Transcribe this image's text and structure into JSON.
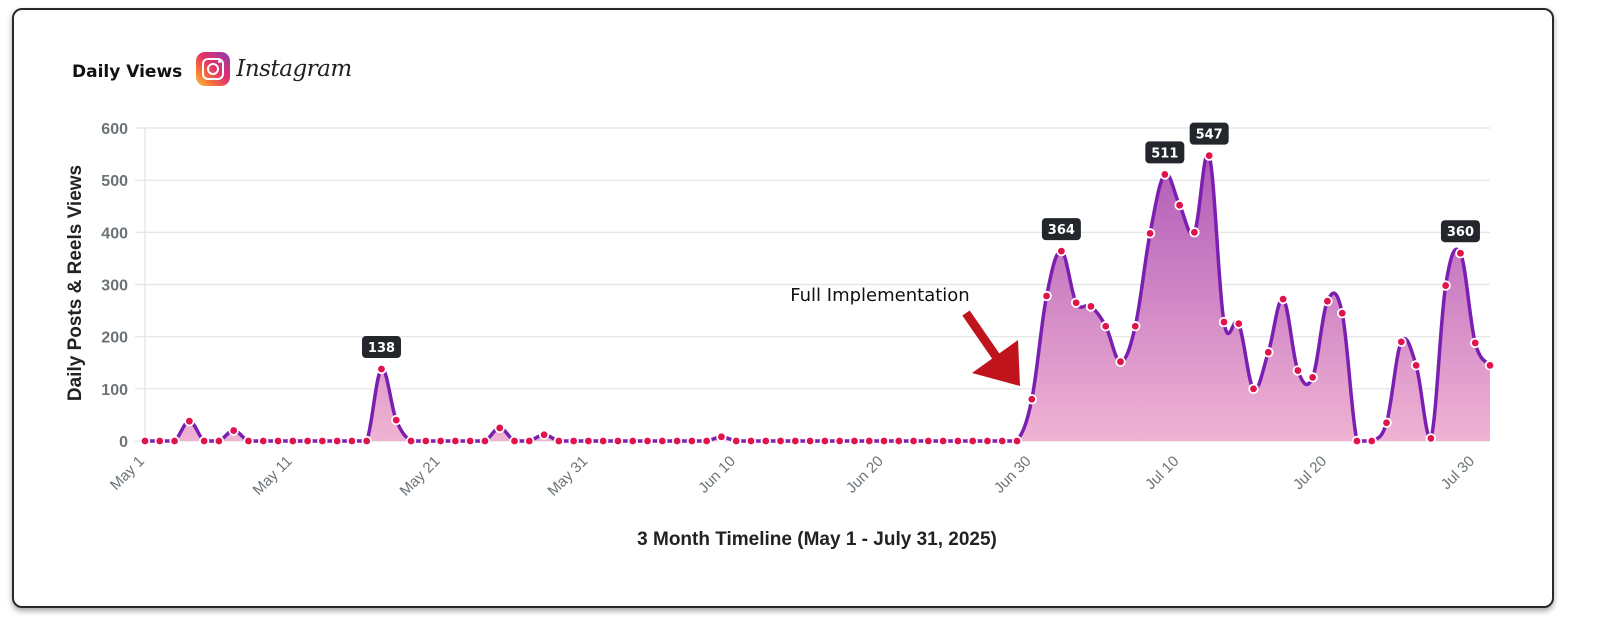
{
  "header": {
    "title": "Daily Views",
    "platform": "Instagram",
    "platform_icon": "instagram-icon"
  },
  "colors": {
    "line": "#7b1fb3",
    "fill_top": "#b05ab8",
    "fill_bottom": "#f0b3d3",
    "marker": "#e0144c",
    "grid": "#e3e3e3",
    "arrow": "#c0141c",
    "label_bg": "#23272b"
  },
  "annotation": {
    "text": "Full Implementation",
    "arrow_icon": "arrow-down-right-icon",
    "target_date": "Jun 29"
  },
  "chart_data": {
    "type": "area",
    "title": "Daily Views",
    "xlabel": "3 Month Timeline (May 1 - July 31, 2025)",
    "ylabel": "Daily Posts & Reels Views",
    "ylim": [
      0,
      600
    ],
    "yticks": [
      0,
      100,
      200,
      300,
      400,
      500,
      600
    ],
    "xtick_labels": [
      "May 1",
      "May 11",
      "May 21",
      "May 31",
      "Jun 10",
      "Jun 20",
      "Jun 30",
      "Jul 10",
      "Jul 20",
      "Jul 30"
    ],
    "xtick_indices": [
      0,
      10,
      20,
      30,
      40,
      50,
      60,
      70,
      80,
      90
    ],
    "grid": true,
    "legend": null,
    "start_date": "May 1, 2025",
    "end_date": "July 31, 2025",
    "series": [
      {
        "name": "Daily Posts & Reels Views",
        "values": [
          0,
          0,
          0,
          38,
          0,
          0,
          20,
          0,
          0,
          0,
          0,
          0,
          0,
          0,
          0,
          0,
          138,
          40,
          0,
          0,
          0,
          0,
          0,
          0,
          25,
          0,
          0,
          12,
          0,
          0,
          0,
          0,
          0,
          0,
          0,
          0,
          0,
          0,
          0,
          8,
          0,
          0,
          0,
          0,
          0,
          0,
          0,
          0,
          0,
          0,
          0,
          0,
          0,
          0,
          0,
          0,
          0,
          0,
          0,
          0,
          80,
          278,
          364,
          265,
          258,
          220,
          152,
          220,
          398,
          511,
          452,
          400,
          547,
          228,
          225,
          100,
          170,
          272,
          135,
          122,
          268,
          245,
          0,
          0,
          35,
          190,
          145,
          5,
          298,
          360,
          188,
          145
        ]
      }
    ],
    "data_labels": [
      {
        "index": 16,
        "date": "May 17",
        "value": "138"
      },
      {
        "index": 62,
        "date": "Jul 2",
        "value": "364"
      },
      {
        "index": 69,
        "date": "Jul 9",
        "value": "511"
      },
      {
        "index": 72,
        "date": "Jul 12",
        "value": "547"
      },
      {
        "index": 89,
        "date": "Jul 29",
        "value": "360"
      }
    ],
    "annotations": [
      {
        "text": "Full Implementation",
        "points_to_index": 59
      }
    ]
  }
}
